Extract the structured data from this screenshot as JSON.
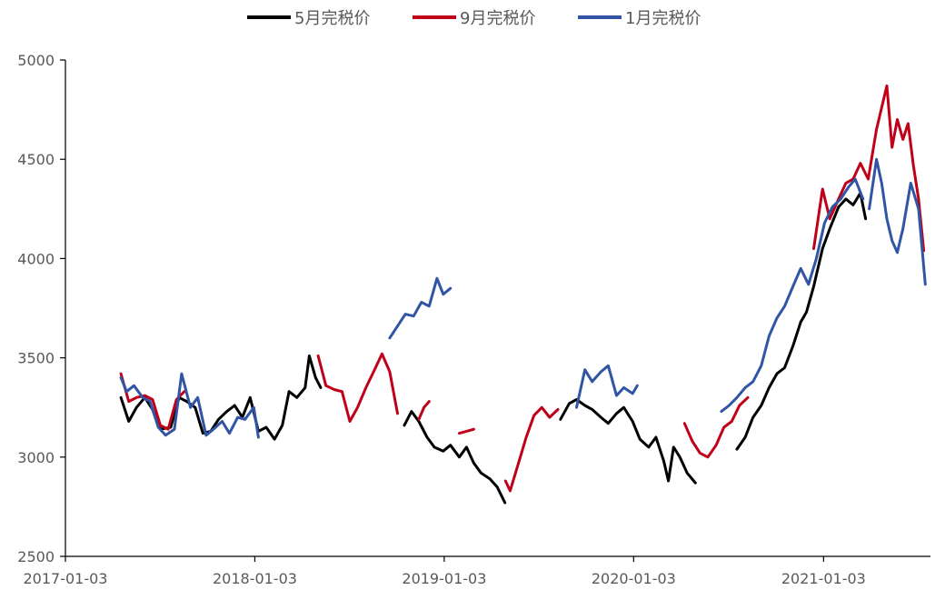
{
  "chart_data": {
    "type": "line",
    "title": "",
    "xlabel": "",
    "ylabel": "",
    "ylim": [
      2500,
      5000
    ],
    "xlim": [
      "2017-01-03",
      "2021-07-28"
    ],
    "y_ticks": [
      2500,
      3000,
      3500,
      4000,
      4500,
      5000
    ],
    "x_ticks": [
      "2017-01-03",
      "2018-01-03",
      "2019-01-03",
      "2020-01-03",
      "2021-01-03"
    ],
    "grid": false,
    "legend_position": "top",
    "series": [
      {
        "name": "5月完税价",
        "color": "#000000",
        "segments": [
          [
            [
              "2017-04-20",
              3300
            ],
            [
              "2017-05-05",
              3180
            ],
            [
              "2017-05-20",
              3250
            ],
            [
              "2017-06-05",
              3300
            ],
            [
              "2017-06-20",
              3240
            ],
            [
              "2017-07-05",
              3140
            ],
            [
              "2017-07-25",
              3150
            ],
            [
              "2017-08-10",
              3300
            ],
            [
              "2017-08-25",
              3280
            ],
            [
              "2017-09-10",
              3250
            ],
            [
              "2017-09-25",
              3120
            ],
            [
              "2017-10-10",
              3130
            ],
            [
              "2017-10-25",
              3190
            ],
            [
              "2017-11-10",
              3230
            ],
            [
              "2017-11-25",
              3260
            ],
            [
              "2017-12-10",
              3200
            ],
            [
              "2017-12-25",
              3300
            ],
            [
              "2018-01-10",
              3130
            ],
            [
              "2018-01-25",
              3150
            ],
            [
              "2018-02-10",
              3090
            ],
            [
              "2018-02-25",
              3160
            ],
            [
              "2018-03-10",
              3330
            ],
            [
              "2018-03-25",
              3300
            ],
            [
              "2018-04-10",
              3350
            ],
            [
              "2018-04-18",
              3510
            ],
            [
              "2018-04-30",
              3400
            ],
            [
              "2018-05-10",
              3350
            ]
          ],
          [
            [
              "2018-10-18",
              3160
            ],
            [
              "2018-11-01",
              3230
            ],
            [
              "2018-11-15",
              3180
            ],
            [
              "2018-12-01",
              3100
            ],
            [
              "2018-12-15",
              3050
            ],
            [
              "2019-01-01",
              3030
            ],
            [
              "2019-01-15",
              3060
            ],
            [
              "2019-02-01",
              3000
            ],
            [
              "2019-02-15",
              3050
            ],
            [
              "2019-03-01",
              2970
            ],
            [
              "2019-03-15",
              2920
            ],
            [
              "2019-04-01",
              2890
            ],
            [
              "2019-04-15",
              2850
            ],
            [
              "2019-04-30",
              2770
            ]
          ],
          [
            [
              "2019-08-15",
              3190
            ],
            [
              "2019-09-01",
              3270
            ],
            [
              "2019-09-15",
              3290
            ],
            [
              "2019-10-01",
              3260
            ],
            [
              "2019-10-15",
              3240
            ],
            [
              "2019-11-01",
              3200
            ],
            [
              "2019-11-15",
              3170
            ],
            [
              "2019-12-01",
              3220
            ],
            [
              "2019-12-15",
              3250
            ],
            [
              "2020-01-01",
              3180
            ],
            [
              "2020-01-15",
              3090
            ],
            [
              "2020-02-01",
              3050
            ],
            [
              "2020-02-15",
              3100
            ],
            [
              "2020-03-01",
              2980
            ],
            [
              "2020-03-10",
              2880
            ],
            [
              "2020-03-20",
              3050
            ],
            [
              "2020-04-01",
              3000
            ],
            [
              "2020-04-15",
              2920
            ],
            [
              "2020-05-01",
              2870
            ]
          ],
          [
            [
              "2020-07-20",
              3040
            ],
            [
              "2020-08-05",
              3100
            ],
            [
              "2020-08-20",
              3200
            ],
            [
              "2020-09-05",
              3260
            ],
            [
              "2020-09-20",
              3350
            ],
            [
              "2020-10-05",
              3420
            ],
            [
              "2020-10-20",
              3450
            ],
            [
              "2020-11-05",
              3560
            ],
            [
              "2020-11-20",
              3680
            ],
            [
              "2020-12-01",
              3730
            ],
            [
              "2020-12-15",
              3860
            ],
            [
              "2021-01-01",
              4050
            ],
            [
              "2021-01-15",
              4150
            ],
            [
              "2021-02-01",
              4260
            ],
            [
              "2021-02-15",
              4300
            ],
            [
              "2021-03-01",
              4270
            ],
            [
              "2021-03-15",
              4330
            ],
            [
              "2021-03-25",
              4200
            ]
          ]
        ]
      },
      {
        "name": "9月完税价",
        "color": "#C00018",
        "segments": [
          [
            [
              "2017-04-20",
              3420
            ],
            [
              "2017-05-05",
              3280
            ],
            [
              "2017-05-20",
              3300
            ],
            [
              "2017-06-05",
              3310
            ],
            [
              "2017-06-20",
              3290
            ],
            [
              "2017-07-05",
              3160
            ],
            [
              "2017-07-20",
              3140
            ],
            [
              "2017-08-05",
              3290
            ],
            [
              "2017-08-20",
              3330
            ]
          ],
          [
            [
              "2018-05-05",
              3510
            ],
            [
              "2018-05-20",
              3360
            ],
            [
              "2018-06-05",
              3340
            ],
            [
              "2018-06-20",
              3330
            ],
            [
              "2018-07-05",
              3180
            ],
            [
              "2018-07-20",
              3250
            ],
            [
              "2018-08-05",
              3350
            ],
            [
              "2018-08-20",
              3430
            ],
            [
              "2018-09-05",
              3520
            ],
            [
              "2018-09-20",
              3430
            ],
            [
              "2018-10-05",
              3220
            ]
          ],
          [
            [
              "2018-11-15",
              3190
            ],
            [
              "2018-11-25",
              3250
            ],
            [
              "2018-12-05",
              3280
            ]
          ],
          [
            [
              "2019-02-01",
              3120
            ],
            [
              "2019-02-15",
              3130
            ],
            [
              "2019-03-01",
              3140
            ]
          ],
          [
            [
              "2019-05-01",
              2880
            ],
            [
              "2019-05-10",
              2830
            ],
            [
              "2019-05-25",
              2960
            ],
            [
              "2019-06-10",
              3100
            ],
            [
              "2019-06-25",
              3210
            ],
            [
              "2019-07-10",
              3250
            ],
            [
              "2019-07-25",
              3200
            ],
            [
              "2019-08-10",
              3240
            ]
          ],
          [
            [
              "2020-04-10",
              3170
            ],
            [
              "2020-04-25",
              3080
            ],
            [
              "2020-05-10",
              3020
            ],
            [
              "2020-05-25",
              3000
            ],
            [
              "2020-06-10",
              3060
            ],
            [
              "2020-06-25",
              3150
            ],
            [
              "2020-07-10",
              3180
            ],
            [
              "2020-07-25",
              3260
            ],
            [
              "2020-08-10",
              3300
            ]
          ],
          [
            [
              "2020-12-15",
              4050
            ],
            [
              "2021-01-01",
              4350
            ],
            [
              "2021-01-15",
              4200
            ],
            [
              "2021-02-01",
              4300
            ],
            [
              "2021-02-15",
              4380
            ],
            [
              "2021-03-01",
              4400
            ],
            [
              "2021-03-15",
              4480
            ],
            [
              "2021-03-30",
              4400
            ],
            [
              "2021-04-15",
              4650
            ],
            [
              "2021-04-25",
              4760
            ],
            [
              "2021-05-05",
              4870
            ],
            [
              "2021-05-15",
              4560
            ],
            [
              "2021-05-25",
              4700
            ],
            [
              "2021-06-05",
              4600
            ],
            [
              "2021-06-15",
              4680
            ],
            [
              "2021-06-25",
              4470
            ],
            [
              "2021-07-05",
              4300
            ],
            [
              "2021-07-15",
              4040
            ]
          ]
        ]
      },
      {
        "name": "1月完税价",
        "color": "#2F55A4",
        "segments": [
          [
            [
              "2017-04-20",
              3400
            ],
            [
              "2017-05-01",
              3330
            ],
            [
              "2017-05-15",
              3360
            ],
            [
              "2017-06-01",
              3300
            ],
            [
              "2017-06-15",
              3280
            ],
            [
              "2017-07-01",
              3150
            ],
            [
              "2017-07-15",
              3110
            ],
            [
              "2017-08-01",
              3140
            ],
            [
              "2017-08-15",
              3420
            ],
            [
              "2017-09-01",
              3250
            ],
            [
              "2017-09-15",
              3300
            ],
            [
              "2017-10-01",
              3110
            ],
            [
              "2017-10-15",
              3140
            ],
            [
              "2017-11-01",
              3180
            ],
            [
              "2017-11-15",
              3120
            ],
            [
              "2017-12-01",
              3200
            ],
            [
              "2017-12-15",
              3190
            ],
            [
              "2018-01-01",
              3250
            ],
            [
              "2018-01-10",
              3100
            ]
          ],
          [
            [
              "2018-09-20",
              3600
            ],
            [
              "2018-10-05",
              3660
            ],
            [
              "2018-10-20",
              3720
            ],
            [
              "2018-11-05",
              3710
            ],
            [
              "2018-11-20",
              3780
            ],
            [
              "2018-12-05",
              3760
            ],
            [
              "2018-12-20",
              3900
            ],
            [
              "2019-01-01",
              3820
            ],
            [
              "2019-01-15",
              3850
            ]
          ],
          [
            [
              "2019-09-15",
              3250
            ],
            [
              "2019-10-01",
              3440
            ],
            [
              "2019-10-15",
              3380
            ],
            [
              "2019-11-01",
              3430
            ],
            [
              "2019-11-15",
              3460
            ],
            [
              "2019-12-01",
              3310
            ],
            [
              "2019-12-15",
              3350
            ],
            [
              "2020-01-01",
              3320
            ],
            [
              "2020-01-10",
              3360
            ]
          ],
          [
            [
              "2020-06-20",
              3230
            ],
            [
              "2020-07-05",
              3260
            ],
            [
              "2020-07-20",
              3300
            ],
            [
              "2020-08-05",
              3350
            ],
            [
              "2020-08-20",
              3380
            ],
            [
              "2020-09-05",
              3460
            ],
            [
              "2020-09-20",
              3610
            ],
            [
              "2020-10-05",
              3700
            ],
            [
              "2020-10-20",
              3760
            ],
            [
              "2020-11-05",
              3860
            ],
            [
              "2020-11-20",
              3950
            ],
            [
              "2020-12-05",
              3870
            ],
            [
              "2020-12-20",
              4000
            ],
            [
              "2021-01-05",
              4180
            ],
            [
              "2021-01-20",
              4260
            ],
            [
              "2021-02-05",
              4300
            ],
            [
              "2021-02-20",
              4360
            ],
            [
              "2021-03-05",
              4400
            ],
            [
              "2021-03-20",
              4300
            ]
          ],
          [
            [
              "2021-04-01",
              4250
            ],
            [
              "2021-04-15",
              4500
            ],
            [
              "2021-04-25",
              4380
            ],
            [
              "2021-05-05",
              4200
            ],
            [
              "2021-05-15",
              4090
            ],
            [
              "2021-05-25",
              4030
            ],
            [
              "2021-06-05",
              4150
            ],
            [
              "2021-06-20",
              4380
            ],
            [
              "2021-07-05",
              4250
            ],
            [
              "2021-07-18",
              3870
            ]
          ]
        ]
      }
    ]
  }
}
